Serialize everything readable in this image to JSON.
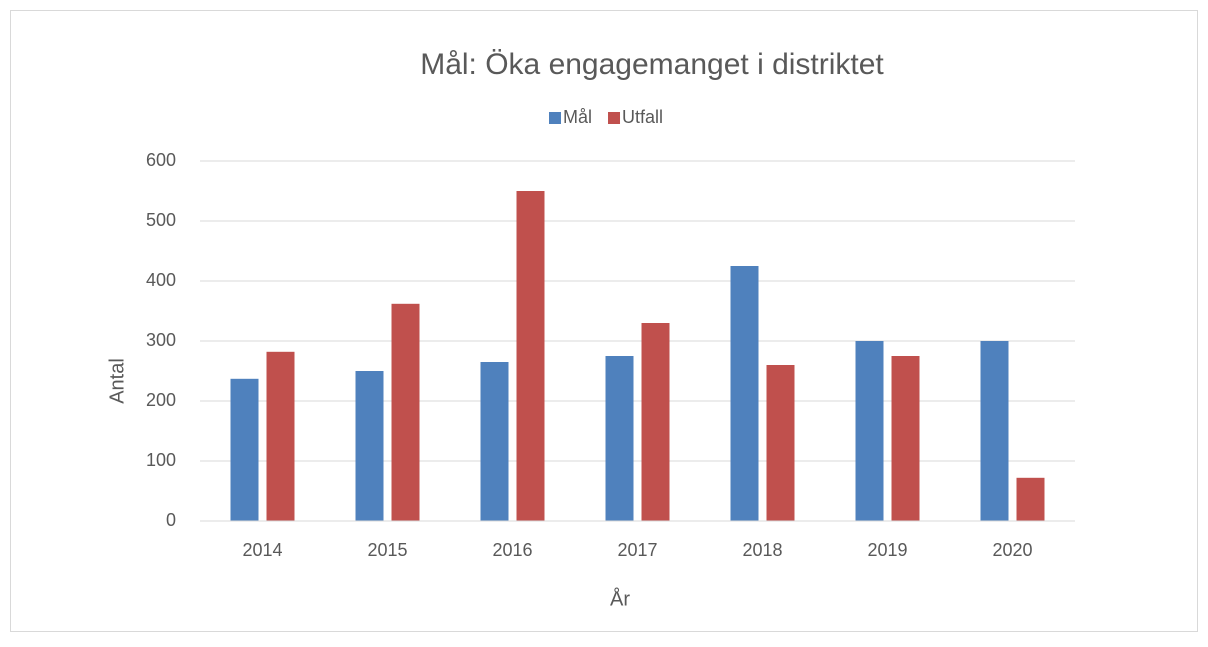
{
  "chart_data": {
    "type": "bar",
    "title": "Mål: Öka engagemanget i distriktet",
    "categories": [
      "2014",
      "2015",
      "2016",
      "2017",
      "2018",
      "2019",
      "2020"
    ],
    "series": [
      {
        "name": "Mål",
        "color": "#4f81bd",
        "values": [
          237,
          250,
          265,
          275,
          425,
          300,
          300
        ]
      },
      {
        "name": "Utfall",
        "color": "#c0504d",
        "values": [
          282,
          362,
          550,
          330,
          260,
          275,
          72
        ]
      }
    ],
    "x_label": "År",
    "y_label": "Antal",
    "ylim": [
      0,
      600
    ],
    "yticks": [
      0,
      100,
      200,
      300,
      400,
      500,
      600
    ],
    "grid": true,
    "legend": "top"
  }
}
